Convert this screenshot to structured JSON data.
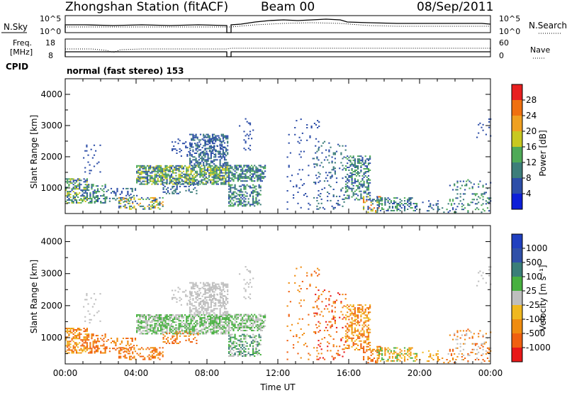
{
  "header": {
    "station": "Zhongshan Station (fitACF)",
    "beam": "Beam 00",
    "date": "08/Sep/2011"
  },
  "panels": {
    "nsky_label": "N.Sky",
    "nsky_top": "10^5",
    "nsky_bottom": "10^0",
    "nsearch_label": "N.Search",
    "nsearch_top": "10^5",
    "nsearch_bottom": "10^0",
    "freq_label_1": "Freq.",
    "freq_label_2": "[MHz]",
    "freq_top": "18",
    "freq_bottom": "8",
    "nave_label": "Nave",
    "nave_top": "60",
    "nave_bottom": "0",
    "cpid_label": "CPID",
    "cpid_text": "normal (fast stereo) 153"
  },
  "colors": {
    "power": [
      "#0d1fd8",
      "#2d4ea8",
      "#3d7e7a",
      "#4faa58",
      "#c8c820",
      "#f0a020",
      "#f07010",
      "#e82020"
    ],
    "velocity": [
      "#e81818",
      "#f06010",
      "#f08c10",
      "#f0b820",
      "#bebebe",
      "#48b040",
      "#3a7e78",
      "#3050a8",
      "#2040c0"
    ]
  },
  "chart_data": [
    {
      "type": "heatmap",
      "ylabel": "Slant Range [km]",
      "xlabel": "",
      "xlim": [
        0,
        24
      ],
      "ylim": [
        180,
        4500
      ],
      "yticks": [
        "1000",
        "2000",
        "3000",
        "4000"
      ],
      "colorbar_label": "Power [dB]",
      "colorbar_ticks": [
        "4",
        "8",
        "12",
        "16",
        "20",
        "24",
        "28"
      ],
      "colorbar_range": [
        0,
        32
      ]
    },
    {
      "type": "heatmap",
      "ylabel": "Slant Range [km]",
      "xlabel": "Time UT",
      "xlim": [
        0,
        24
      ],
      "ylim": [
        180,
        4500
      ],
      "xticks": [
        "00:00",
        "04:00",
        "08:00",
        "12:00",
        "16:00",
        "20:00",
        "00:00"
      ],
      "yticks": [
        "1000",
        "2000",
        "3000",
        "4000"
      ],
      "colorbar_label": "Velocity [m s⁻¹]",
      "colorbar_ticks": [
        "-1000",
        "-500",
        "-100",
        "-25",
        "25",
        "100",
        "500",
        "1000"
      ]
    }
  ]
}
